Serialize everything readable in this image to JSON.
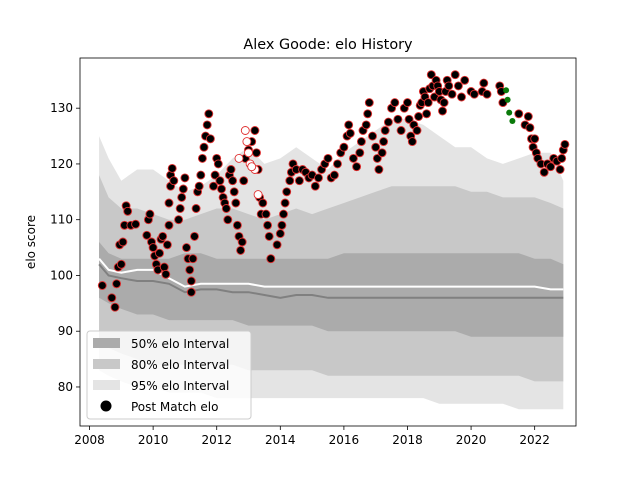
{
  "chart_data": {
    "type": "scatter",
    "title": "Alex Goode: elo History",
    "xlabel": "",
    "ylabel": "elo score",
    "xlim": [
      2007.7,
      2023.3
    ],
    "ylim": [
      73,
      139
    ],
    "xticks": [
      2008,
      2010,
      2012,
      2014,
      2016,
      2018,
      2020,
      2022
    ],
    "yticks": [
      80,
      90,
      100,
      110,
      120,
      130
    ],
    "legend_position": "lower-left",
    "legend": [
      {
        "label": "50% elo Interval",
        "kind": "patch",
        "color": "#ababab"
      },
      {
        "label": "80% elo Interval",
        "kind": "patch",
        "color": "#c8c8c8"
      },
      {
        "label": "95% elo Interval",
        "kind": "patch",
        "color": "#e4e4e4"
      },
      {
        "label": "Post Match elo",
        "kind": "marker",
        "color": "#000000"
      }
    ],
    "colors": {
      "band50": "#ababab",
      "band80": "#c8c8c8",
      "band95": "#e4e4e4",
      "median_line": "#808080",
      "mean_line": "#ffffff",
      "point_fill": "#000000",
      "point_edge_win": "#e03030",
      "point_hollow_fill": "#ffffff",
      "point_green": "#0a7a0a"
    },
    "bands": {
      "x": [
        2008.3,
        2008.6,
        2009.0,
        2009.5,
        2010.0,
        2010.5,
        2011.0,
        2011.5,
        2012.0,
        2012.5,
        2013.0,
        2013.5,
        2014.0,
        2014.5,
        2015.0,
        2015.5,
        2016.0,
        2016.5,
        2017.0,
        2017.5,
        2018.0,
        2018.5,
        2019.0,
        2019.5,
        2020.0,
        2020.5,
        2021.0,
        2021.5,
        2022.0,
        2022.5,
        2022.9
      ],
      "p95_upper": [
        125,
        121,
        117,
        119,
        119,
        117,
        115,
        116,
        118,
        121,
        123,
        120,
        121,
        123,
        121,
        119,
        122,
        124,
        126,
        128,
        128,
        127,
        125,
        123,
        123,
        121,
        120,
        121,
        122,
        122,
        117
      ],
      "p80_upper": [
        118,
        114,
        112,
        112,
        111,
        110,
        110,
        111,
        112,
        112,
        111,
        110,
        111,
        112,
        111,
        112,
        113,
        114,
        115,
        116,
        116,
        116,
        116,
        116,
        115,
        115,
        114,
        114,
        114,
        113,
        112
      ],
      "p50_upper": [
        106,
        104,
        103,
        103,
        103,
        103,
        104,
        104,
        103,
        103,
        103,
        103,
        103,
        103,
        103,
        103,
        104,
        104,
        104,
        104,
        104,
        104,
        104,
        104,
        104,
        104,
        104,
        104,
        103,
        103,
        102
      ],
      "p50_lower": [
        96,
        95,
        94,
        93,
        93,
        92,
        92,
        92,
        92,
        92,
        91,
        91,
        91,
        91,
        91,
        90,
        90,
        90,
        90,
        90,
        90,
        90,
        90,
        90,
        89,
        89,
        89,
        89,
        89,
        89,
        89
      ],
      "p80_lower": [
        88,
        87,
        86,
        85,
        84,
        84,
        84,
        84,
        84,
        84,
        83,
        83,
        83,
        83,
        83,
        82,
        82,
        82,
        82,
        82,
        82,
        82,
        82,
        82,
        82,
        82,
        82,
        82,
        81,
        81,
        81
      ],
      "p95_lower": [
        83,
        82,
        81,
        80,
        80,
        79,
        79,
        79,
        78,
        78,
        78,
        78,
        78,
        78,
        78,
        78,
        78,
        78,
        78,
        78,
        78,
        78,
        77,
        77,
        77,
        77,
        77,
        76,
        76,
        76,
        76
      ],
      "median": [
        102,
        100,
        99.5,
        99,
        99,
        98.5,
        97,
        97.5,
        97.5,
        97,
        97,
        96.5,
        96,
        96.5,
        96.5,
        96,
        96,
        96,
        96,
        96,
        96,
        96,
        96,
        96,
        96,
        96,
        96,
        96,
        96,
        96,
        96
      ],
      "mean": [
        103,
        101,
        100.5,
        101,
        101,
        99.5,
        98,
        98.5,
        98.5,
        98.5,
        98.5,
        98,
        98,
        98,
        98,
        98,
        98,
        98,
        98,
        98,
        98,
        98,
        98,
        98,
        98,
        98,
        98,
        98,
        98,
        97.5,
        97.5
      ]
    },
    "series": [
      {
        "name": "Post Match elo",
        "points": [
          [
            2008.4,
            98.2
          ],
          [
            2008.7,
            96.0
          ],
          [
            2008.8,
            94.3
          ],
          [
            2008.85,
            98.5
          ],
          [
            2008.9,
            101.5
          ],
          [
            2009.0,
            102.0
          ],
          [
            2008.95,
            105.5
          ],
          [
            2009.05,
            106.0
          ],
          [
            2009.1,
            109.0
          ],
          [
            2009.15,
            112.5
          ],
          [
            2009.2,
            111.5
          ],
          [
            2009.3,
            109.0
          ],
          [
            2009.45,
            109.2
          ],
          [
            2009.8,
            107.2
          ],
          [
            2009.85,
            110.0
          ],
          [
            2009.9,
            111.0
          ],
          [
            2009.95,
            106.0
          ],
          [
            2010.0,
            105.0
          ],
          [
            2010.05,
            103.5
          ],
          [
            2010.1,
            102.0
          ],
          [
            2010.15,
            101.0
          ],
          [
            2010.2,
            104.0
          ],
          [
            2010.25,
            106.5
          ],
          [
            2010.3,
            107.0
          ],
          [
            2010.35,
            101.5
          ],
          [
            2010.4,
            100.2
          ],
          [
            2010.45,
            105.5
          ],
          [
            2010.5,
            109.0
          ],
          [
            2010.5,
            113.0
          ],
          [
            2010.55,
            116.0
          ],
          [
            2010.55,
            118.0
          ],
          [
            2010.6,
            119.2
          ],
          [
            2010.65,
            117.0
          ],
          [
            2010.8,
            110.0
          ],
          [
            2010.85,
            112.0
          ],
          [
            2010.9,
            114.0
          ],
          [
            2010.95,
            115.5
          ],
          [
            2011.0,
            117.5
          ],
          [
            2011.05,
            105.0
          ],
          [
            2011.1,
            103.0
          ],
          [
            2011.15,
            101.0
          ],
          [
            2011.2,
            99.0
          ],
          [
            2011.2,
            97.0
          ],
          [
            2011.25,
            103.0
          ],
          [
            2011.3,
            107.0
          ],
          [
            2011.35,
            112.0
          ],
          [
            2011.4,
            115.0
          ],
          [
            2011.45,
            116.0
          ],
          [
            2011.5,
            118.0
          ],
          [
            2011.55,
            121.0
          ],
          [
            2011.6,
            123.0
          ],
          [
            2011.65,
            125.0
          ],
          [
            2011.7,
            127.0
          ],
          [
            2011.75,
            129.0
          ],
          [
            2011.8,
            124.5
          ],
          [
            2011.9,
            116.0
          ],
          [
            2011.95,
            118.0
          ],
          [
            2012.0,
            121.0
          ],
          [
            2012.05,
            120.0
          ],
          [
            2012.1,
            117.0
          ],
          [
            2012.15,
            115.5
          ],
          [
            2012.2,
            114.0
          ],
          [
            2012.25,
            113.0
          ],
          [
            2012.3,
            112.0
          ],
          [
            2012.35,
            110.0
          ],
          [
            2012.4,
            118.0
          ],
          [
            2012.45,
            119.0
          ],
          [
            2012.5,
            117.0
          ],
          [
            2012.55,
            115.0
          ],
          [
            2012.6,
            113.0
          ],
          [
            2012.65,
            109.0
          ],
          [
            2012.7,
            107.0
          ],
          [
            2012.75,
            104.5
          ],
          [
            2012.8,
            106.0
          ],
          [
            2012.85,
            117.0
          ],
          [
            2012.9,
            121.0
          ],
          [
            2013.0,
            122.5
          ],
          [
            2013.1,
            124.0
          ],
          [
            2013.2,
            126.0
          ],
          [
            2013.25,
            122.0
          ],
          [
            2013.3,
            119.0
          ],
          [
            2013.35,
            114.0
          ],
          [
            2013.4,
            111.0
          ],
          [
            2013.45,
            113.0
          ],
          [
            2013.55,
            111.0
          ],
          [
            2013.6,
            109.0
          ],
          [
            2013.65,
            107.0
          ],
          [
            2013.7,
            103.0
          ],
          [
            2013.9,
            105.5
          ],
          [
            2014.0,
            107.5
          ],
          [
            2014.05,
            109.0
          ],
          [
            2014.1,
            111.0
          ],
          [
            2014.15,
            113.0
          ],
          [
            2014.2,
            115.0
          ],
          [
            2014.3,
            117.0
          ],
          [
            2014.35,
            118.5
          ],
          [
            2014.4,
            120.0
          ],
          [
            2014.5,
            119.0
          ],
          [
            2014.6,
            117.0
          ],
          [
            2014.7,
            119.0
          ],
          [
            2014.8,
            118.5
          ],
          [
            2014.9,
            117.5
          ],
          [
            2015.0,
            118.0
          ],
          [
            2015.1,
            116.0
          ],
          [
            2015.2,
            117.5
          ],
          [
            2015.3,
            119.0
          ],
          [
            2015.4,
            120.0
          ],
          [
            2015.5,
            121.0
          ],
          [
            2015.6,
            117.5
          ],
          [
            2015.7,
            118.0
          ],
          [
            2015.8,
            120.0
          ],
          [
            2015.9,
            122.0
          ],
          [
            2016.0,
            123.0
          ],
          [
            2016.1,
            125.0
          ],
          [
            2016.15,
            127.0
          ],
          [
            2016.2,
            125.5
          ],
          [
            2016.3,
            121.0
          ],
          [
            2016.4,
            119.5
          ],
          [
            2016.5,
            122.0
          ],
          [
            2016.55,
            124.0
          ],
          [
            2016.6,
            126.0
          ],
          [
            2016.7,
            127.0
          ],
          [
            2016.75,
            129.0
          ],
          [
            2016.8,
            131.0
          ],
          [
            2016.9,
            125.0
          ],
          [
            2017.0,
            123.0
          ],
          [
            2017.05,
            121.0
          ],
          [
            2017.1,
            119.0
          ],
          [
            2017.2,
            122.0
          ],
          [
            2017.25,
            124.0
          ],
          [
            2017.3,
            126.0
          ],
          [
            2017.4,
            127.5
          ],
          [
            2017.5,
            130.0
          ],
          [
            2017.6,
            131.0
          ],
          [
            2017.7,
            128.0
          ],
          [
            2017.8,
            126.0
          ],
          [
            2017.9,
            130.0
          ],
          [
            2018.0,
            131.0
          ],
          [
            2018.05,
            128.0
          ],
          [
            2018.1,
            125.0
          ],
          [
            2018.15,
            124.0
          ],
          [
            2018.2,
            127.0
          ],
          [
            2018.3,
            126.0
          ],
          [
            2018.35,
            128.5
          ],
          [
            2018.4,
            130.5
          ],
          [
            2018.45,
            131.0
          ],
          [
            2018.5,
            133.0
          ],
          [
            2018.55,
            132.0
          ],
          [
            2018.6,
            129.0
          ],
          [
            2018.65,
            131.0
          ],
          [
            2018.7,
            133.5
          ],
          [
            2018.75,
            136.0
          ],
          [
            2018.8,
            134.0
          ],
          [
            2018.85,
            132.0
          ],
          [
            2018.9,
            135.0
          ],
          [
            2018.95,
            134.0
          ],
          [
            2019.0,
            133.0
          ],
          [
            2019.05,
            131.5
          ],
          [
            2019.1,
            129.5
          ],
          [
            2019.15,
            131.0
          ],
          [
            2019.2,
            133.0
          ],
          [
            2019.25,
            135.0
          ],
          [
            2019.3,
            134.0
          ],
          [
            2019.4,
            132.5
          ],
          [
            2019.5,
            136.0
          ],
          [
            2019.6,
            134.0
          ],
          [
            2019.7,
            132.0
          ],
          [
            2019.8,
            135.0
          ],
          [
            2020.0,
            133.0
          ],
          [
            2020.1,
            132.5
          ],
          [
            2020.35,
            133.0
          ],
          [
            2020.4,
            134.5
          ],
          [
            2020.5,
            132.5
          ],
          [
            2020.9,
            134.0
          ],
          [
            2020.95,
            133.0
          ],
          [
            2021.0,
            131.0
          ],
          [
            2021.5,
            129.0
          ],
          [
            2021.7,
            127.0
          ],
          [
            2021.8,
            128.5
          ],
          [
            2021.85,
            126.5
          ],
          [
            2021.9,
            124.5
          ],
          [
            2021.95,
            123.0
          ],
          [
            2022.0,
            124.5
          ],
          [
            2022.05,
            122.0
          ],
          [
            2022.1,
            121.0
          ],
          [
            2022.2,
            120.0
          ],
          [
            2022.3,
            118.5
          ],
          [
            2022.4,
            120.0
          ],
          [
            2022.5,
            119.5
          ],
          [
            2022.6,
            121.0
          ],
          [
            2022.7,
            120.5
          ],
          [
            2022.8,
            119.0
          ],
          [
            2022.85,
            121.0
          ],
          [
            2022.9,
            122.5
          ],
          [
            2022.95,
            123.5
          ]
        ],
        "hollow_points": [
          [
            2012.9,
            126.0
          ],
          [
            2012.95,
            124.0
          ],
          [
            2013.0,
            122.0
          ],
          [
            2013.05,
            120.0
          ],
          [
            2013.2,
            119.0
          ],
          [
            2013.3,
            114.5
          ],
          [
            2012.7,
            121.0
          ],
          [
            2013.1,
            119.5
          ]
        ],
        "green_points": [
          [
            2021.1,
            133.2
          ],
          [
            2021.15,
            131.5
          ],
          [
            2021.2,
            129.2
          ],
          [
            2021.3,
            127.7
          ]
        ]
      }
    ]
  }
}
